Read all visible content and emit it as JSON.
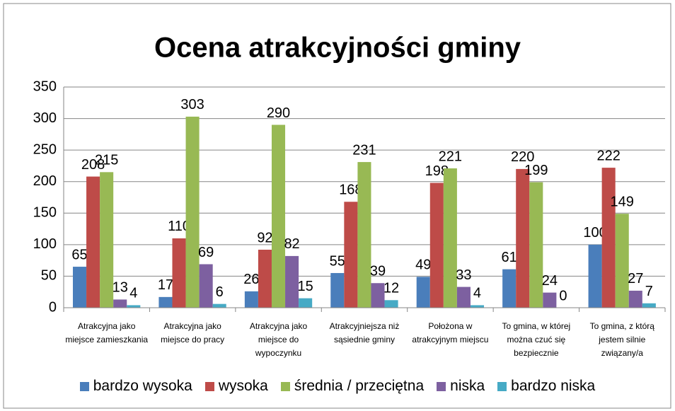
{
  "chart_data": {
    "type": "bar",
    "title": "Ocena atrakcyjności gminy",
    "categories": [
      "Atrakcyjna jako miejsce zamieszkania",
      "Atrakcyjna jako miejsce do pracy",
      "Atrakcyjna jako miejsce do wypoczynku",
      "Atrakcyjniejsza niż sąsiednie gminy",
      "Położona w atrakcyjnym miejscu",
      "To gmina, w której można czuć się bezpiecznie",
      "To gmina, z którą jestem silnie związany/a"
    ],
    "series": [
      {
        "name": "bardzo wysoka",
        "color": "#4a7ebb",
        "values": [
          65,
          17,
          26,
          55,
          49,
          61,
          100
        ]
      },
      {
        "name": "wysoka",
        "color": "#be4b48",
        "values": [
          208,
          110,
          92,
          168,
          198,
          220,
          222
        ]
      },
      {
        "name": "średnia / przeciętna",
        "color": "#98b954",
        "values": [
          215,
          303,
          290,
          231,
          221,
          199,
          149
        ]
      },
      {
        "name": "niska",
        "color": "#7d60a0",
        "values": [
          13,
          69,
          82,
          39,
          33,
          24,
          27
        ]
      },
      {
        "name": "bardzo niska",
        "color": "#46aac5",
        "values": [
          4,
          6,
          15,
          12,
          4,
          0,
          7
        ]
      }
    ],
    "ylim": [
      0,
      350
    ],
    "yticks": [
      0,
      50,
      100,
      150,
      200,
      250,
      300,
      350
    ],
    "grid": true,
    "legend": "bottom"
  }
}
